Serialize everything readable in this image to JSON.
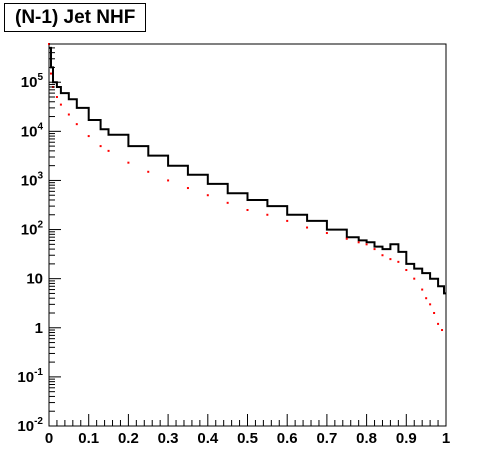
{
  "title": "(N-1) Jet NHF",
  "chart_data": {
    "type": "line",
    "title": "(N-1) Jet NHF",
    "xlabel": "",
    "ylabel": "",
    "xlim": [
      0,
      1
    ],
    "ylim": [
      0.01,
      600000
    ],
    "yscale": "log",
    "grid": false,
    "legend": "none",
    "x_ticks": [
      "0",
      "0.1",
      "0.2",
      "0.3",
      "0.4",
      "0.5",
      "0.6",
      "0.7",
      "0.8",
      "0.9",
      "1"
    ],
    "y_ticks": [
      {
        "base": "10",
        "exp": "-2"
      },
      {
        "base": "10",
        "exp": "-1"
      },
      {
        "base": "1",
        "exp": ""
      },
      {
        "base": "10",
        "exp": ""
      },
      {
        "base": "10",
        "exp": "2"
      },
      {
        "base": "10",
        "exp": "3"
      },
      {
        "base": "10",
        "exp": "4"
      },
      {
        "base": "10",
        "exp": "5"
      }
    ],
    "series": [
      {
        "style": "step",
        "color": "#000000",
        "x": [
          0,
          0.005,
          0.01,
          0.02,
          0.03,
          0.05,
          0.07,
          0.1,
          0.13,
          0.15,
          0.2,
          0.25,
          0.3,
          0.35,
          0.4,
          0.45,
          0.5,
          0.55,
          0.6,
          0.65,
          0.7,
          0.75,
          0.78,
          0.8,
          0.82,
          0.84,
          0.86,
          0.88,
          0.9,
          0.92,
          0.94,
          0.96,
          0.98,
          0.995
        ],
        "y": [
          500000,
          200000,
          100000,
          80000,
          60000,
          45000,
          30000,
          17000,
          11000,
          8500,
          5000,
          3200,
          2000,
          1300,
          850,
          550,
          400,
          300,
          200,
          150,
          100,
          70,
          60,
          55,
          45,
          40,
          50,
          35,
          20,
          16,
          13,
          10,
          7,
          5
        ]
      },
      {
        "style": "markers",
        "color": "#ff0000",
        "x": [
          0,
          0.005,
          0.01,
          0.02,
          0.03,
          0.05,
          0.07,
          0.1,
          0.13,
          0.15,
          0.2,
          0.25,
          0.3,
          0.35,
          0.4,
          0.45,
          0.5,
          0.55,
          0.6,
          0.65,
          0.7,
          0.75,
          0.78,
          0.8,
          0.82,
          0.84,
          0.86,
          0.88,
          0.9,
          0.92,
          0.94,
          0.95,
          0.96,
          0.97,
          0.98,
          0.99
        ],
        "y": [
          600000,
          150000,
          80000,
          50000,
          35000,
          22000,
          14000,
          8000,
          5000,
          4000,
          2300,
          1500,
          1000,
          700,
          500,
          350,
          250,
          200,
          150,
          110,
          85,
          65,
          55,
          50,
          40,
          30,
          25,
          22,
          15,
          10,
          6,
          4,
          3,
          2,
          1.2,
          0.9
        ]
      }
    ]
  }
}
